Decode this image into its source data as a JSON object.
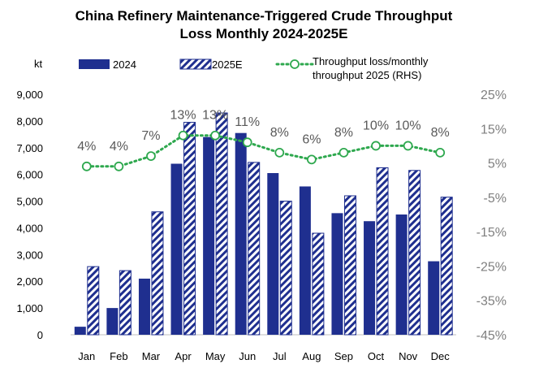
{
  "chart_data": {
    "type": "bar",
    "title_lines": [
      "China Refinery Maintenance-Triggered Crude Throughput",
      "Loss Monthly 2024-2025E"
    ],
    "ylabel": "kt",
    "categories": [
      "Jan",
      "Feb",
      "Mar",
      "Apr",
      "May",
      "Jun",
      "Jul",
      "Aug",
      "Sep",
      "Oct",
      "Nov",
      "Dec"
    ],
    "series": [
      {
        "name": "2024",
        "kind": "bar",
        "axis": "left",
        "color": "#1f2f8f",
        "values": [
          300,
          1000,
          2100,
          6400,
          7400,
          7550,
          6050,
          5550,
          4550,
          4250,
          4500,
          2750
        ]
      },
      {
        "name": "2025E",
        "kind": "hatched-bar",
        "axis": "left",
        "color": "#1f2f8f",
        "values": [
          2550,
          2400,
          4600,
          7950,
          8300,
          6450,
          5000,
          3800,
          5200,
          6250,
          6150,
          5150
        ]
      },
      {
        "name": "Throughput  loss/monthly throughput  2025 (RHS)",
        "kind": "dotted-line-markers",
        "axis": "right",
        "color": "#2ea84e",
        "values": [
          4,
          4,
          7,
          13,
          13,
          11,
          8,
          6,
          8,
          10,
          10,
          8
        ]
      }
    ],
    "legend": {
      "placement": "top",
      "entries": [
        "2024",
        "2025E"
      ],
      "line_entry_lines": [
        "Throughput  loss/monthly",
        "throughput  2025 (RHS)"
      ]
    },
    "data_labels": [
      "4%",
      "4%",
      "7%",
      "13%",
      "13%",
      "11%",
      "8%",
      "6%",
      "8%",
      "10%",
      "10%",
      "8%"
    ],
    "ylim_left": [
      0,
      9000
    ],
    "yticks_left": [
      "0",
      "1,000",
      "2,000",
      "3,000",
      "4,000",
      "5,000",
      "6,000",
      "7,000",
      "8,000",
      "9,000"
    ],
    "ylim_right": [
      -45,
      25
    ],
    "yticks_right": [
      "-45%",
      "-35%",
      "-25%",
      "-15%",
      "-5%",
      "5%",
      "15%",
      "25%"
    ],
    "grid": false
  }
}
